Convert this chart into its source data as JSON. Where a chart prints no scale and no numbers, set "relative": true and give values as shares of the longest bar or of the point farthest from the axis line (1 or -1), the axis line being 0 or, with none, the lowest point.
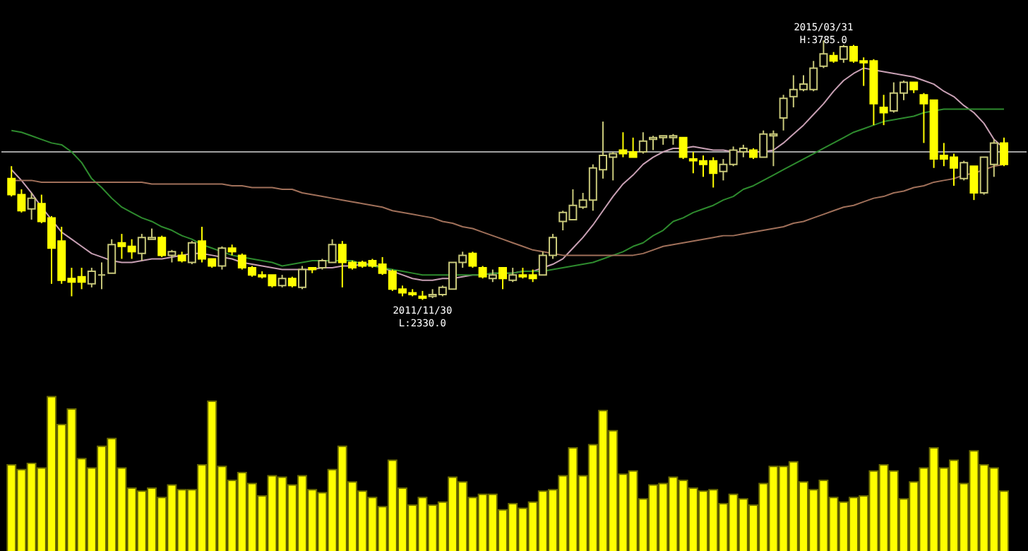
{
  "chart_data": [
    {
      "type": "candlestick",
      "categories": [
        null,
        null,
        null,
        null,
        null,
        null,
        null,
        null,
        null,
        null,
        null,
        null,
        null,
        null,
        null,
        null,
        null,
        null,
        null,
        null,
        null,
        null,
        null,
        null,
        null,
        null,
        null,
        null,
        null,
        null,
        null,
        null,
        null,
        null,
        null,
        null,
        null,
        null,
        null,
        null,
        null,
        null,
        null,
        null,
        null,
        null,
        null,
        null,
        null,
        null,
        null,
        null,
        null,
        null,
        null,
        null,
        null,
        null,
        null,
        null,
        null,
        null,
        null,
        null,
        null,
        null,
        null,
        null,
        null,
        null,
        null,
        null,
        null,
        null,
        null,
        null,
        null,
        null,
        null,
        null,
        null,
        null,
        null,
        null,
        null,
        null,
        null,
        null,
        null,
        null,
        null,
        null,
        null,
        null,
        null,
        null,
        null,
        null,
        null,
        null
      ],
      "ohlc": [
        [
          3010,
          3080,
          2910,
          2920
        ],
        [
          2920,
          2950,
          2820,
          2830
        ],
        [
          2840,
          2930,
          2780,
          2900
        ],
        [
          2870,
          2920,
          2760,
          2770
        ],
        [
          2790,
          2800,
          2420,
          2620
        ],
        [
          2660,
          2740,
          2420,
          2440
        ],
        [
          2450,
          2510,
          2350,
          2430
        ],
        [
          2460,
          2510,
          2390,
          2430
        ],
        [
          2420,
          2510,
          2400,
          2490
        ],
        [
          2470,
          2540,
          2390,
          2470
        ],
        [
          2480,
          2670,
          2480,
          2640
        ],
        [
          2650,
          2700,
          2560,
          2630
        ],
        [
          2630,
          2670,
          2560,
          2600
        ],
        [
          2590,
          2700,
          2550,
          2680
        ],
        [
          2670,
          2730,
          2670,
          2680
        ],
        [
          2680,
          2690,
          2570,
          2580
        ],
        [
          2580,
          2610,
          2540,
          2600
        ],
        [
          2580,
          2600,
          2540,
          2550
        ],
        [
          2540,
          2660,
          2530,
          2650
        ],
        [
          2660,
          2740,
          2540,
          2560
        ],
        [
          2560,
          2560,
          2510,
          2520
        ],
        [
          2520,
          2630,
          2500,
          2620
        ],
        [
          2620,
          2640,
          2580,
          2600
        ],
        [
          2580,
          2590,
          2500,
          2510
        ],
        [
          2510,
          2520,
          2460,
          2470
        ],
        [
          2470,
          2490,
          2450,
          2460
        ],
        [
          2470,
          2470,
          2400,
          2410
        ],
        [
          2410,
          2470,
          2400,
          2450
        ],
        [
          2450,
          2460,
          2400,
          2410
        ],
        [
          2400,
          2520,
          2390,
          2500
        ],
        [
          2510,
          2510,
          2480,
          2500
        ],
        [
          2510,
          2560,
          2500,
          2550
        ],
        [
          2540,
          2670,
          2540,
          2640
        ],
        [
          2640,
          2660,
          2400,
          2540
        ],
        [
          2540,
          2550,
          2500,
          2510
        ],
        [
          2540,
          2550,
          2510,
          2520
        ],
        [
          2550,
          2560,
          2510,
          2520
        ],
        [
          2530,
          2570,
          2470,
          2480
        ],
        [
          2490,
          2500,
          2380,
          2390
        ],
        [
          2390,
          2410,
          2350,
          2370
        ],
        [
          2370,
          2390,
          2350,
          2360
        ],
        [
          2350,
          2380,
          2330,
          2340
        ],
        [
          2350,
          2390,
          2340,
          2360
        ],
        [
          2360,
          2410,
          2350,
          2400
        ],
        [
          2390,
          2540,
          2390,
          2540
        ],
        [
          2540,
          2600,
          2510,
          2580
        ],
        [
          2590,
          2600,
          2510,
          2520
        ],
        [
          2510,
          2520,
          2450,
          2460
        ],
        [
          2450,
          2500,
          2430,
          2470
        ],
        [
          2510,
          2510,
          2390,
          2450
        ],
        [
          2440,
          2510,
          2430,
          2470
        ],
        [
          2470,
          2510,
          2450,
          2460
        ],
        [
          2470,
          2500,
          2430,
          2450
        ],
        [
          2470,
          2600,
          2470,
          2580
        ],
        [
          2580,
          2700,
          2560,
          2680
        ],
        [
          2770,
          2830,
          2720,
          2820
        ],
        [
          2780,
          2950,
          2780,
          2860
        ],
        [
          2850,
          2930,
          2840,
          2890
        ],
        [
          2890,
          3090,
          2830,
          3070
        ],
        [
          3060,
          3330,
          3010,
          3140
        ],
        [
          3130,
          3160,
          3000,
          3150
        ],
        [
          3170,
          3270,
          3130,
          3150
        ],
        [
          3160,
          3240,
          3130,
          3130
        ],
        [
          3160,
          3270,
          3150,
          3220
        ],
        [
          3230,
          3250,
          3170,
          3240
        ],
        [
          3240,
          3250,
          3200,
          3250
        ],
        [
          3240,
          3260,
          3200,
          3250
        ],
        [
          3240,
          3240,
          3120,
          3130
        ],
        [
          3120,
          3160,
          3040,
          3110
        ],
        [
          3110,
          3140,
          3020,
          3090
        ],
        [
          3110,
          3130,
          2960,
          3040
        ],
        [
          3050,
          3120,
          3000,
          3090
        ],
        [
          3090,
          3190,
          3080,
          3170
        ],
        [
          3160,
          3200,
          3130,
          3180
        ],
        [
          3170,
          3180,
          3120,
          3130
        ],
        [
          3130,
          3280,
          3130,
          3260
        ],
        [
          3250,
          3280,
          3080,
          3260
        ],
        [
          3350,
          3480,
          3280,
          3460
        ],
        [
          3470,
          3590,
          3410,
          3510
        ],
        [
          3510,
          3590,
          3500,
          3540
        ],
        [
          3510,
          3670,
          3500,
          3630
        ],
        [
          3640,
          3785,
          3630,
          3710
        ],
        [
          3700,
          3720,
          3660,
          3670
        ],
        [
          3680,
          3760,
          3660,
          3750
        ],
        [
          3750,
          3760,
          3660,
          3670
        ],
        [
          3670,
          3690,
          3530,
          3660
        ],
        [
          3670,
          3680,
          3310,
          3430
        ],
        [
          3410,
          3480,
          3310,
          3380
        ],
        [
          3390,
          3550,
          3380,
          3490
        ],
        [
          3490,
          3560,
          3450,
          3550
        ],
        [
          3550,
          3550,
          3490,
          3510
        ],
        [
          3480,
          3490,
          3210,
          3430
        ],
        [
          3450,
          3450,
          3070,
          3120
        ],
        [
          3140,
          3210,
          3080,
          3120
        ],
        [
          3130,
          3150,
          2970,
          3070
        ],
        [
          3010,
          3110,
          3000,
          3100
        ],
        [
          3080,
          3080,
          2890,
          2930
        ],
        [
          2930,
          3130,
          2920,
          3130
        ],
        [
          3090,
          3230,
          3020,
          3210
        ],
        [
          3210,
          3240,
          3080,
          3090
        ]
      ],
      "series": [
        {
          "type": "line",
          "color": "#c8a0b4",
          "values": [
            3060,
            3000,
            2930,
            2850,
            2780,
            2710,
            2670,
            2630,
            2590,
            2570,
            2550,
            2540,
            2540,
            2550,
            2560,
            2560,
            2570,
            2580,
            2590,
            2590,
            2580,
            2570,
            2560,
            2540,
            2530,
            2520,
            2510,
            2500,
            2500,
            2500,
            2500,
            2510,
            2510,
            2520,
            2520,
            2530,
            2530,
            2510,
            2490,
            2470,
            2450,
            2440,
            2440,
            2450,
            2450,
            2460,
            2470,
            2470,
            2480,
            2480,
            2480,
            2490,
            2490,
            2510,
            2530,
            2560,
            2620,
            2680,
            2750,
            2830,
            2910,
            2980,
            3030,
            3090,
            3130,
            3160,
            3180,
            3180,
            3190,
            3180,
            3170,
            3170,
            3160,
            3160,
            3160,
            3160,
            3170,
            3210,
            3260,
            3310,
            3370,
            3430,
            3500,
            3560,
            3600,
            3630,
            3620,
            3610,
            3600,
            3590,
            3580,
            3560,
            3540,
            3500,
            3470,
            3420,
            3380,
            3320,
            3230,
            3180
          ]
        },
        {
          "type": "line",
          "color": "#2e8b2e",
          "values": [
            3280,
            3270,
            3250,
            3230,
            3210,
            3200,
            3160,
            3100,
            3010,
            2960,
            2900,
            2850,
            2820,
            2790,
            2770,
            2740,
            2720,
            2690,
            2670,
            2640,
            2620,
            2600,
            2580,
            2570,
            2560,
            2550,
            2540,
            2520,
            2530,
            2540,
            2550,
            2550,
            2550,
            2550,
            2550,
            2530,
            2520,
            2510,
            2500,
            2490,
            2480,
            2470,
            2470,
            2470,
            2470,
            2470,
            2470,
            2470,
            2480,
            2480,
            2480,
            2490,
            2490,
            2490,
            2500,
            2510,
            2520,
            2530,
            2540,
            2560,
            2580,
            2600,
            2630,
            2650,
            2690,
            2720,
            2770,
            2790,
            2820,
            2840,
            2860,
            2890,
            2910,
            2950,
            2970,
            3000,
            3030,
            3060,
            3090,
            3120,
            3150,
            3180,
            3210,
            3240,
            3270,
            3290,
            3310,
            3330,
            3340,
            3350,
            3360,
            3380,
            3390,
            3400,
            3400,
            3400,
            3400,
            3400,
            3400,
            3400
          ]
        },
        {
          "type": "line",
          "color": "#a0705a",
          "values": [
            3000,
            3000,
            3000,
            2990,
            2990,
            2990,
            2990,
            2990,
            2990,
            2990,
            2990,
            2990,
            2990,
            2990,
            2980,
            2980,
            2980,
            2980,
            2980,
            2980,
            2980,
            2980,
            2970,
            2970,
            2960,
            2960,
            2960,
            2950,
            2950,
            2930,
            2920,
            2910,
            2900,
            2890,
            2880,
            2870,
            2860,
            2850,
            2830,
            2820,
            2810,
            2800,
            2790,
            2770,
            2760,
            2740,
            2730,
            2710,
            2690,
            2670,
            2650,
            2630,
            2610,
            2600,
            2590,
            2580,
            2580,
            2580,
            2580,
            2580,
            2580,
            2580,
            2580,
            2590,
            2610,
            2630,
            2640,
            2650,
            2660,
            2670,
            2680,
            2690,
            2690,
            2700,
            2710,
            2720,
            2730,
            2740,
            2760,
            2770,
            2790,
            2810,
            2830,
            2850,
            2860,
            2880,
            2900,
            2910,
            2930,
            2940,
            2960,
            2970,
            2990,
            3000,
            3010,
            3030,
            3040,
            3060,
            3080,
            3090
          ]
        }
      ],
      "ref_lines": [
        {
          "axis": "y",
          "value": 3160,
          "color": "#a0a0a0"
        }
      ],
      "annotations": [
        {
          "text": "2011/11/30\nL:2330.0",
          "y": 2330
        },
        {
          "text": "2015/03/31\nH:3785.0",
          "y": 3785
        }
      ]
    },
    {
      "type": "bar",
      "relative": true,
      "color": "#ffff00",
      "categories": [
        null,
        null,
        null,
        null,
        null,
        null,
        null,
        null,
        null,
        null,
        null,
        null,
        null,
        null,
        null,
        null,
        null,
        null,
        null,
        null,
        null,
        null,
        null,
        null,
        null,
        null,
        null,
        null,
        null,
        null,
        null,
        null,
        null,
        null,
        null,
        null,
        null,
        null,
        null,
        null,
        null,
        null,
        null,
        null,
        null,
        null,
        null,
        null,
        null,
        null,
        null,
        null,
        null,
        null,
        null,
        null,
        null,
        null,
        null,
        null,
        null,
        null,
        null,
        null,
        null,
        null,
        null,
        null,
        null,
        null,
        null,
        null,
        null,
        null,
        null,
        null,
        null,
        null,
        null,
        null,
        null,
        null,
        null,
        null,
        null,
        null,
        null,
        null,
        null,
        null,
        null,
        null,
        null,
        null,
        null,
        null,
        null,
        null,
        null,
        null
      ],
      "values": [
        0.56,
        0.53,
        0.57,
        0.54,
        1.0,
        0.82,
        0.92,
        0.6,
        0.54,
        0.68,
        0.73,
        0.54,
        0.41,
        0.39,
        0.41,
        0.35,
        0.43,
        0.4,
        0.4,
        0.56,
        0.97,
        0.55,
        0.46,
        0.51,
        0.44,
        0.36,
        0.49,
        0.48,
        0.43,
        0.49,
        0.4,
        0.38,
        0.53,
        0.68,
        0.45,
        0.39,
        0.35,
        0.29,
        0.59,
        0.41,
        0.3,
        0.35,
        0.3,
        0.32,
        0.48,
        0.45,
        0.35,
        0.37,
        0.37,
        0.27,
        0.31,
        0.28,
        0.32,
        0.39,
        0.4,
        0.49,
        0.67,
        0.49,
        0.69,
        0.91,
        0.78,
        0.5,
        0.52,
        0.34,
        0.43,
        0.44,
        0.48,
        0.46,
        0.41,
        0.39,
        0.4,
        0.31,
        0.37,
        0.34,
        0.3,
        0.44,
        0.55,
        0.55,
        0.58,
        0.45,
        0.4,
        0.46,
        0.35,
        0.32,
        0.35,
        0.36,
        0.52,
        0.56,
        0.52,
        0.34,
        0.45,
        0.54,
        0.67,
        0.54,
        0.59,
        0.44,
        0.65,
        0.56,
        0.54,
        0.39
      ]
    }
  ]
}
